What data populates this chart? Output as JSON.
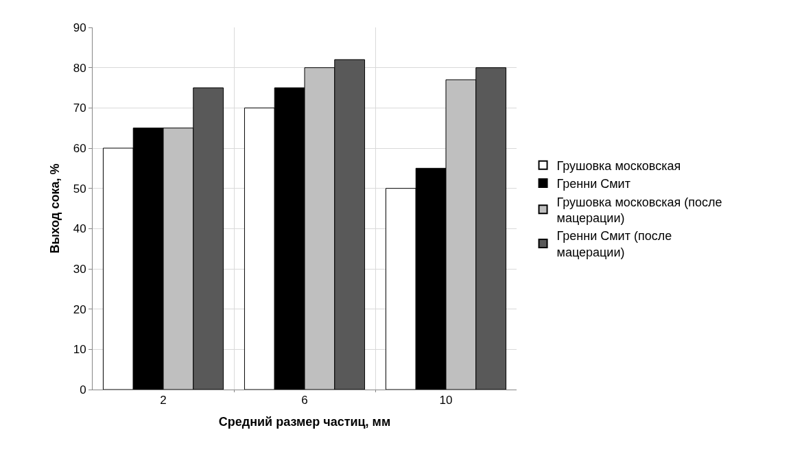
{
  "chart_data": {
    "type": "bar",
    "xlabel": "Средний размер частиц, мм",
    "ylabel": "Выход сока, %",
    "categories": [
      "2",
      "6",
      "10"
    ],
    "series": [
      {
        "name": "Грушовка московская",
        "color": "#ffffff",
        "values": [
          60,
          70,
          50
        ]
      },
      {
        "name": "Гренни Смит",
        "color": "#000000",
        "values": [
          65,
          75,
          55
        ]
      },
      {
        "name": "Грушовка московская (после мацерации)",
        "color": "#bfbfbf",
        "values": [
          65,
          80,
          77
        ]
      },
      {
        "name": "Гренни Смит (после мацерации)",
        "color": "#595959",
        "values": [
          75,
          82,
          80
        ]
      }
    ],
    "ylim": [
      0,
      90
    ],
    "yticks": [
      0,
      10,
      20,
      30,
      40,
      50,
      60,
      70,
      80,
      90
    ],
    "grid": true,
    "legend": "right"
  }
}
